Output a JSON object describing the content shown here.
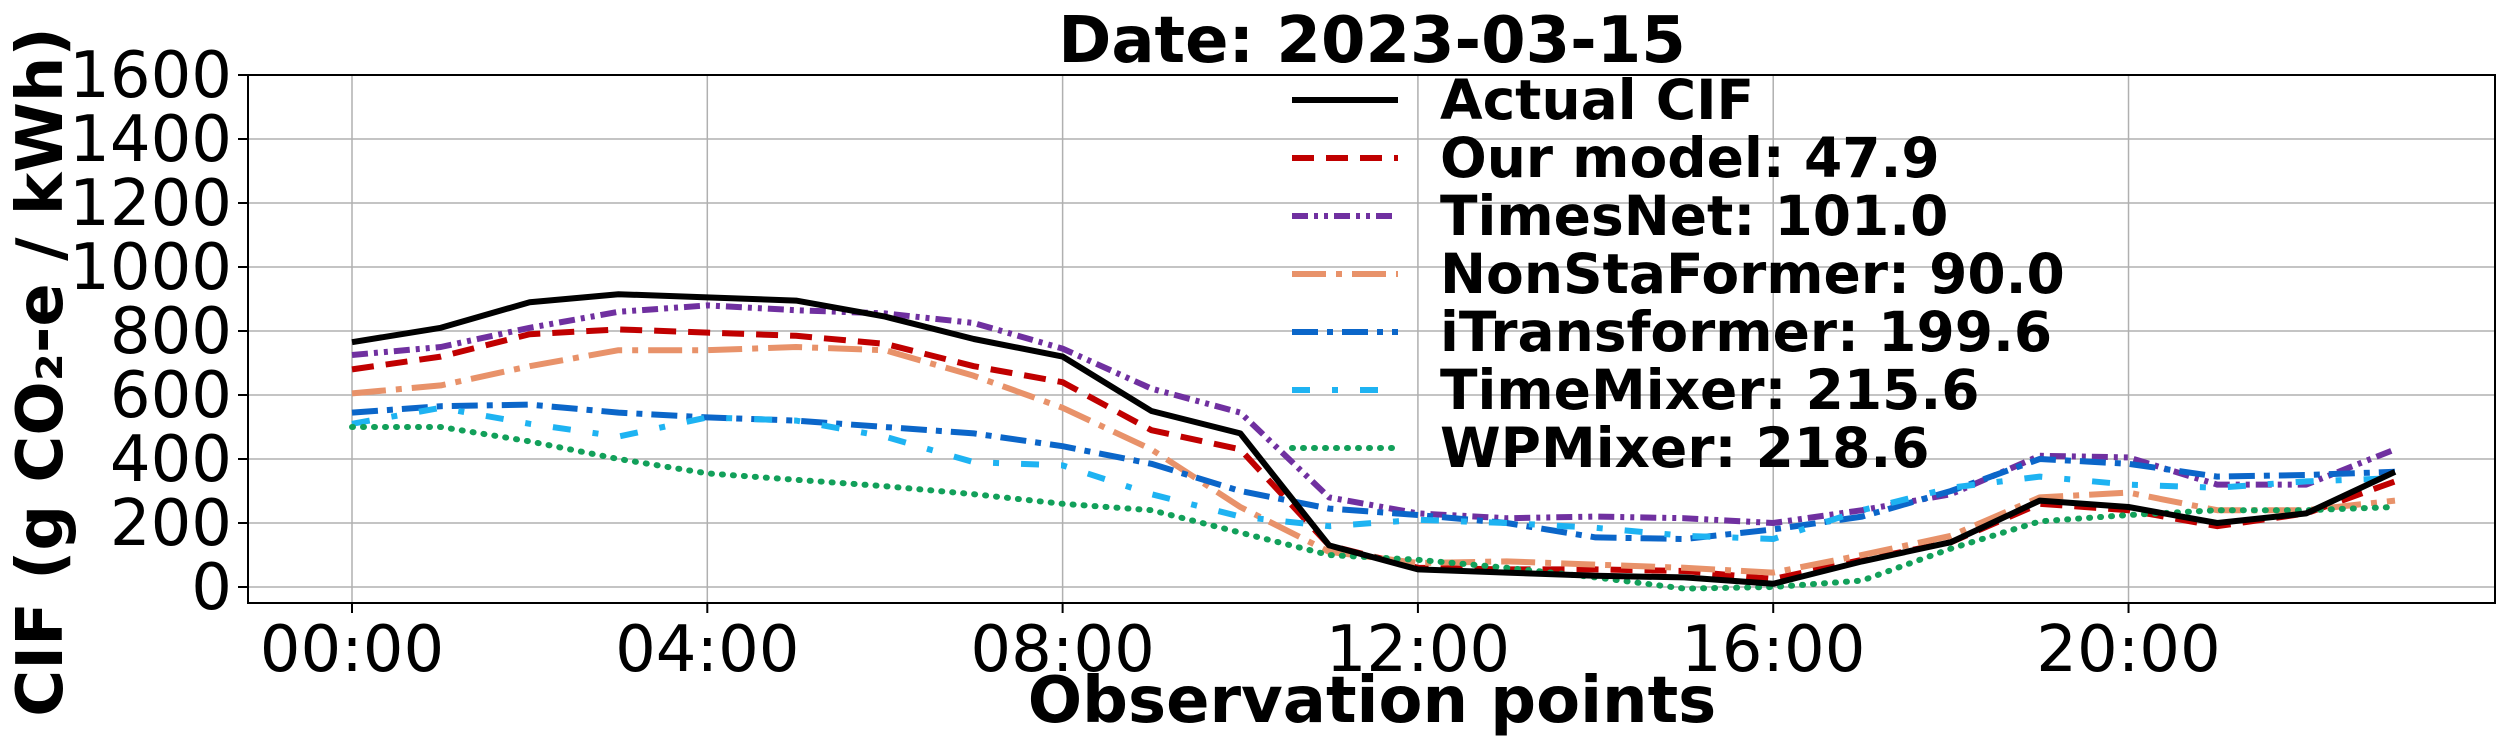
{
  "chart_data": {
    "type": "line",
    "title": "Date: 2023-03-15",
    "xlabel": "Observation points",
    "ylabel": "CIF (g CO₂-e / kWh)",
    "x": [
      "00:00",
      "01:00",
      "02:00",
      "03:00",
      "04:00",
      "05:00",
      "06:00",
      "07:00",
      "08:00",
      "09:00",
      "10:00",
      "11:00",
      "12:00",
      "13:00",
      "14:00",
      "15:00",
      "16:00",
      "17:00",
      "18:00",
      "19:00",
      "20:00",
      "21:00",
      "22:00",
      "23:00"
    ],
    "xticks": [
      "00:00",
      "04:00",
      "08:00",
      "12:00",
      "16:00",
      "20:00"
    ],
    "ylim": [
      -50,
      1600
    ],
    "yticks": [
      0,
      200,
      400,
      600,
      800,
      1000,
      1200,
      1400,
      1600
    ],
    "grid": true,
    "legend_position": "top-center",
    "series": [
      {
        "name": "Actual CIF",
        "color": "#000000",
        "dash": "solid",
        "values": [
          765,
          810,
          890,
          915,
          905,
          895,
          845,
          775,
          720,
          550,
          480,
          130,
          55,
          45,
          35,
          30,
          10,
          80,
          140,
          270,
          250,
          200,
          230,
          360
        ]
      },
      {
        "name": "Our model: 47.9",
        "color": "#c00000",
        "dash": "dashed",
        "values": [
          680,
          720,
          790,
          805,
          795,
          785,
          760,
          690,
          640,
          490,
          430,
          130,
          60,
          55,
          55,
          50,
          25,
          85,
          140,
          260,
          240,
          190,
          230,
          330
        ]
      },
      {
        "name": "TimesNet: 101.0",
        "color": "#7030a0",
        "dash": "dashdotdot",
        "values": [
          725,
          750,
          810,
          860,
          880,
          865,
          855,
          825,
          745,
          620,
          545,
          280,
          230,
          215,
          220,
          215,
          200,
          240,
          290,
          410,
          405,
          320,
          320,
          430
        ]
      },
      {
        "name": "NonStaFormer: 90.0",
        "color": "#e8926a",
        "dash": "longdashdot",
        "values": [
          605,
          630,
          690,
          740,
          740,
          750,
          740,
          660,
          560,
          430,
          250,
          110,
          75,
          80,
          70,
          60,
          45,
          100,
          160,
          280,
          295,
          240,
          240,
          270
        ]
      },
      {
        "name": "iTransformer: 199.6",
        "color": "#0b66c9",
        "dash": "dashdot",
        "values": [
          545,
          565,
          570,
          545,
          530,
          520,
          500,
          480,
          440,
          385,
          300,
          245,
          225,
          200,
          155,
          150,
          180,
          220,
          300,
          400,
          385,
          345,
          350,
          360
        ]
      },
      {
        "name": "TimeMixer: 215.6",
        "color": "#1eb3f2",
        "dash": "sparse-dashdot",
        "values": [
          510,
          560,
          510,
          470,
          530,
          520,
          470,
          390,
          380,
          290,
          220,
          190,
          210,
          200,
          185,
          160,
          150,
          240,
          310,
          345,
          320,
          310,
          330,
          340
        ]
      },
      {
        "name": "WPMixer: 218.6",
        "color": "#12a05a",
        "dash": "dotted",
        "values": [
          500,
          500,
          455,
          400,
          355,
          335,
          315,
          290,
          260,
          240,
          170,
          100,
          85,
          60,
          30,
          -5,
          0,
          20,
          120,
          205,
          225,
          240,
          240,
          250
        ]
      }
    ]
  }
}
